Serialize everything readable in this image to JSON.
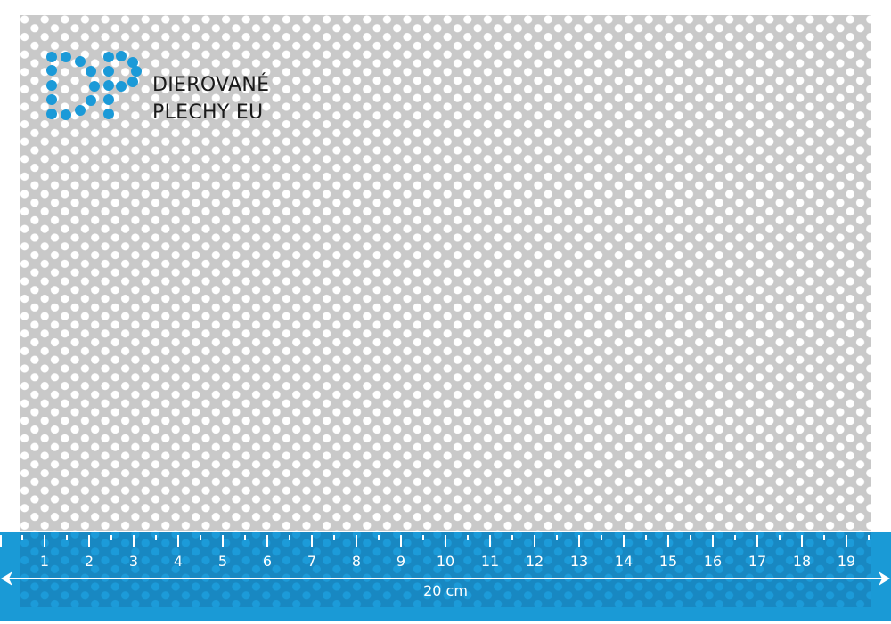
{
  "logo": {
    "line1": "DIEROVANÉ",
    "line2": "PLECHY EU",
    "mark": "DP",
    "color": "#1b9ad8"
  },
  "ruler": {
    "labels": [
      "1",
      "2",
      "3",
      "4",
      "5",
      "6",
      "7",
      "8",
      "9",
      "10",
      "11",
      "12",
      "13",
      "14",
      "15",
      "16",
      "17",
      "18",
      "19"
    ],
    "total_label": "20 cm",
    "color": "#1a9ad6"
  },
  "sheet": {
    "material": "perforated-sheet-round-holes-staggered"
  }
}
